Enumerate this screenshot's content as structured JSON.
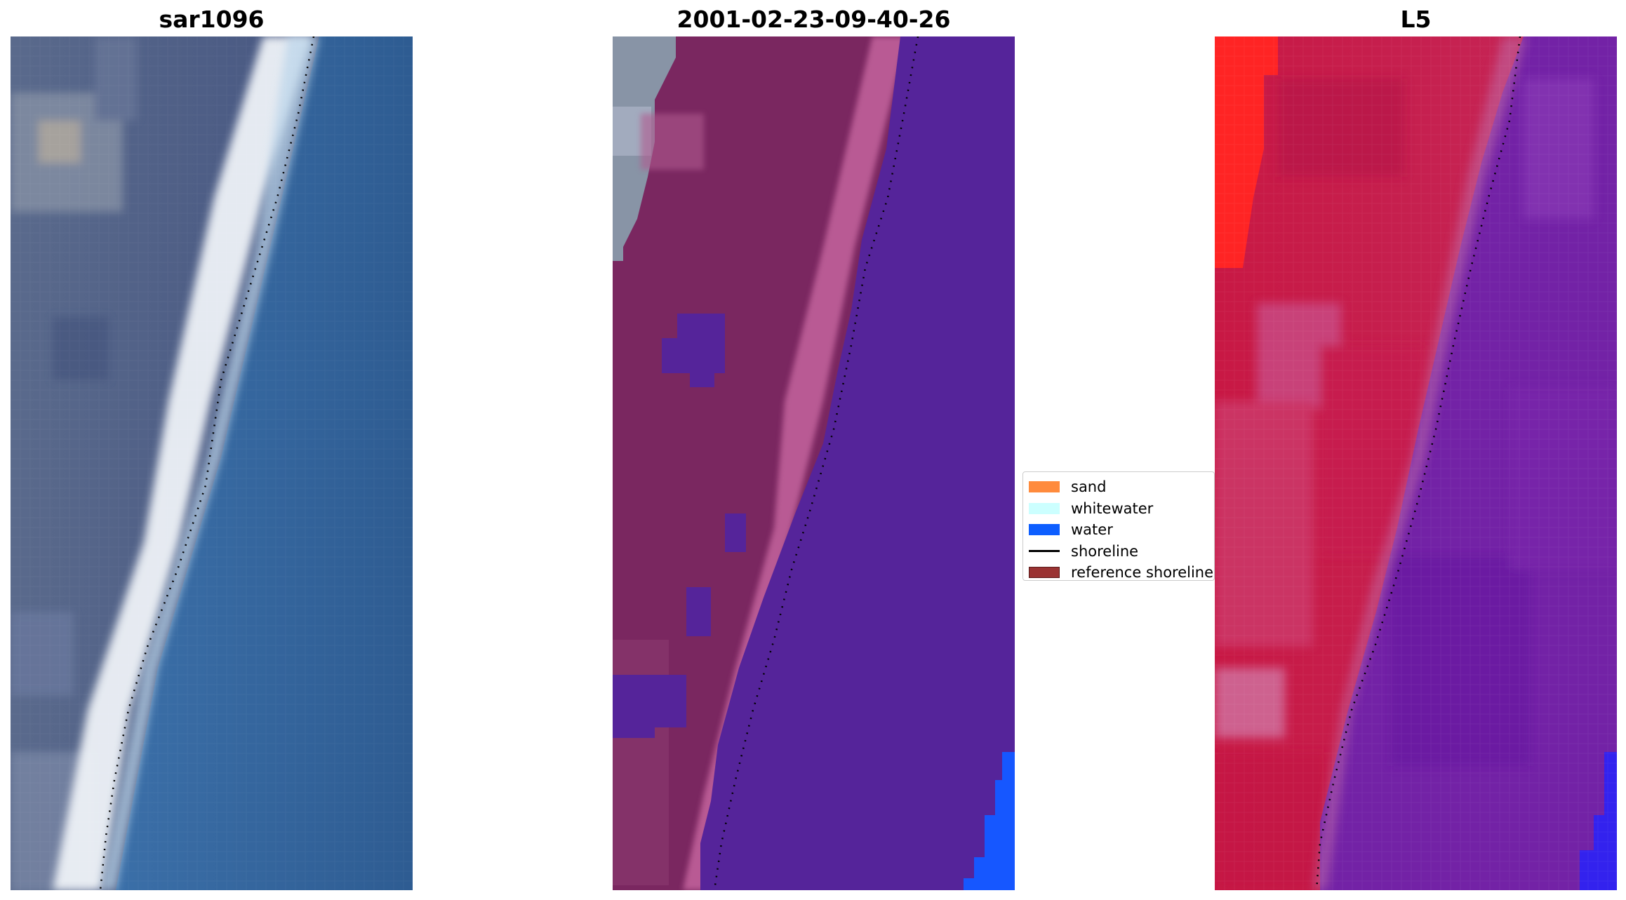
{
  "panels": [
    {
      "id": "rgb",
      "title": "sar1096",
      "colors": {
        "land": "#4e5e86",
        "land_light": "#7c8aa2",
        "beach": "#f3f5f8",
        "foam": "#cfe4f2",
        "sea": "#2f5f95",
        "sea_deep": "#2d5a8f",
        "highlight": "#b8b4b4"
      },
      "icon": "satellite-rgb-image"
    },
    {
      "id": "classified",
      "title": "2001-02-23-09-40-26",
      "colors": {
        "land": "#7a2760",
        "beach": "#c0609a",
        "water_overlay": "#55249a",
        "water_edge": "#1657ff",
        "grey_land": "#8894a6"
      },
      "icon": "classification-overlay-image"
    },
    {
      "id": "index",
      "title": "L5",
      "colors": {
        "land": "#c4143f",
        "land_light": "#d04a78",
        "bright_red": "#ff2020",
        "sea": "#6f1fa6",
        "sea_light": "#8536b3",
        "blue_edge": "#3322ee"
      },
      "icon": "spectral-index-image"
    }
  ],
  "legend": {
    "items": [
      {
        "label": "sand",
        "color": "#ff8b3d",
        "kind": "patch"
      },
      {
        "label": "whitewater",
        "color": "#ccffff",
        "kind": "patch"
      },
      {
        "label": "water",
        "color": "#0d5eff",
        "kind": "patch"
      },
      {
        "label": "shoreline",
        "color": "#000000",
        "kind": "line"
      },
      {
        "label": "reference shoreline",
        "color": "#9a3333",
        "kind": "patch"
      }
    ]
  },
  "shoreline": {
    "color": "#000000"
  }
}
